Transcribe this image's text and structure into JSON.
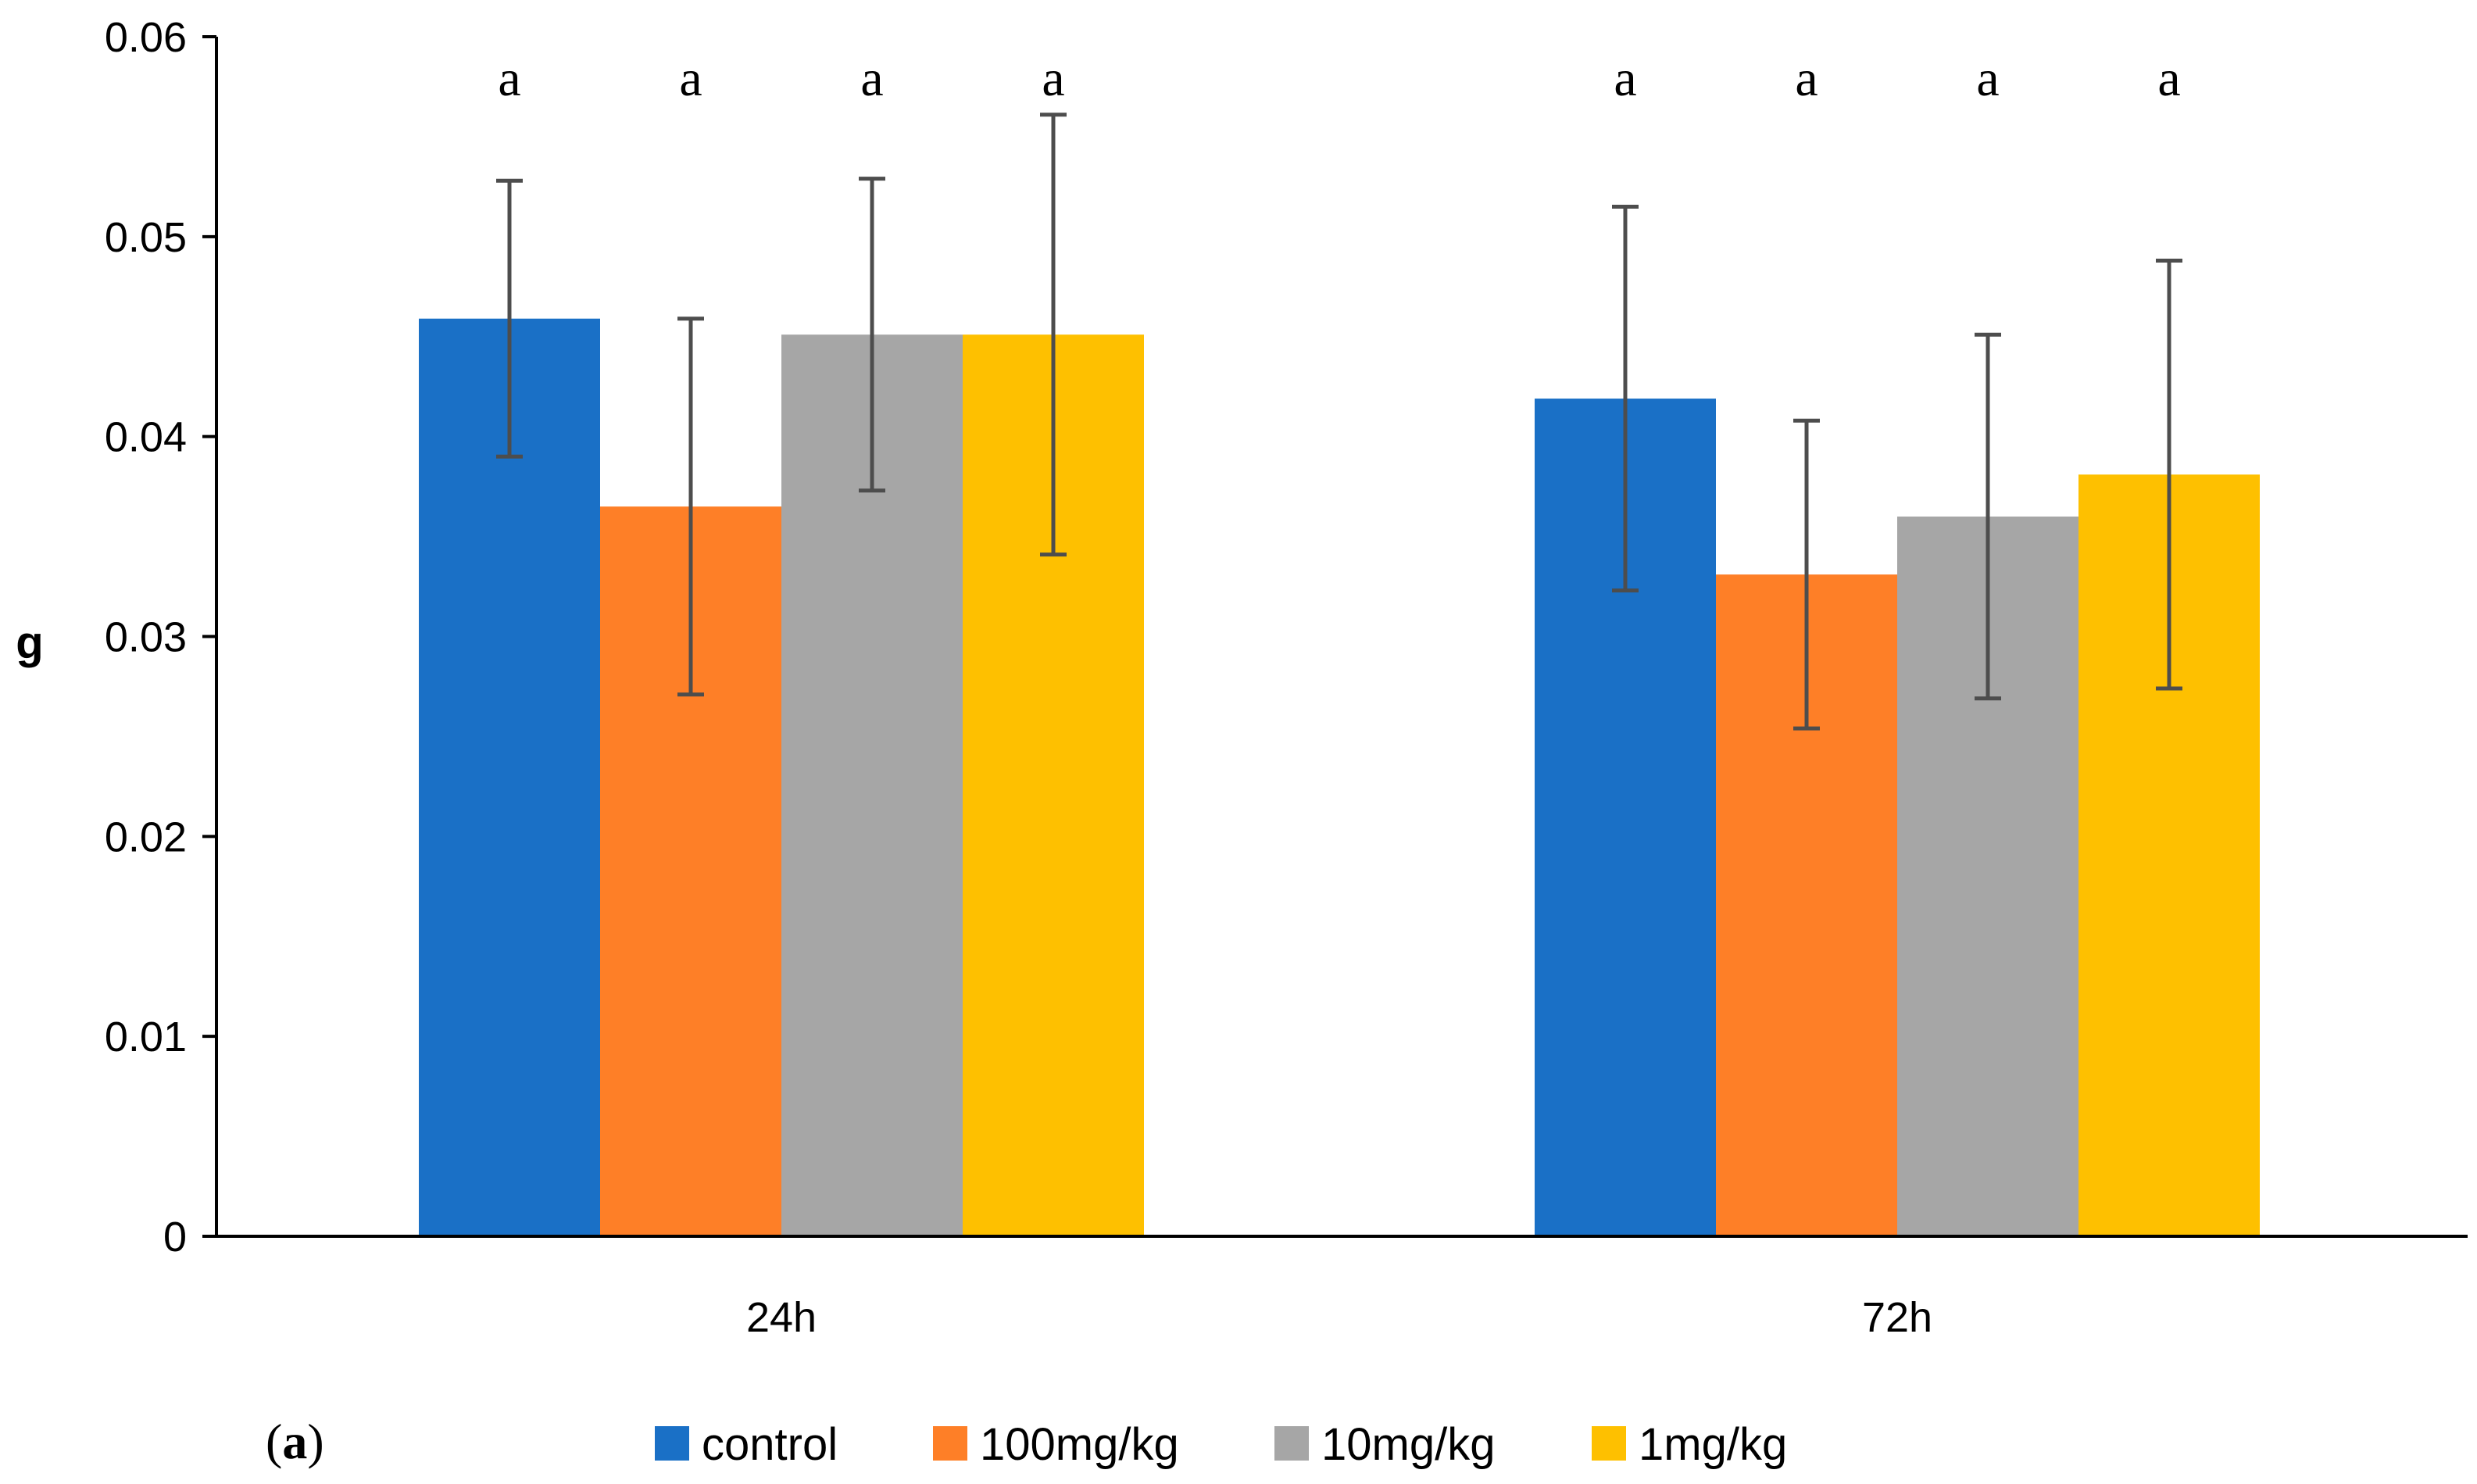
{
  "chart_data": {
    "type": "bar",
    "title": "",
    "xlabel": "",
    "ylabel": "g",
    "ylim": [
      0,
      0.06
    ],
    "yticks": [
      "0",
      "0.01",
      "0.02",
      "0.03",
      "0.04",
      "0.05",
      "0.06"
    ],
    "grid": false,
    "categories": [
      "24h",
      "72h"
    ],
    "series": [
      {
        "name": "control",
        "color": "#1a70c6",
        "values": [
          0.0459,
          0.0419
        ],
        "errors": [
          0.0069,
          0.0096
        ],
        "sig": [
          "a",
          "a"
        ]
      },
      {
        "name": "100mg/kg",
        "color": "#fe7f27",
        "values": [
          0.0365,
          0.0331
        ],
        "errors": [
          0.0094,
          0.0077
        ],
        "sig": [
          "a",
          "a"
        ]
      },
      {
        "name": "10mg/kg",
        "color": "#a6a6a6",
        "values": [
          0.0451,
          0.036
        ],
        "errors": [
          0.0078,
          0.0091
        ],
        "sig": [
          "a",
          "a"
        ]
      },
      {
        "name": "1mg/kg",
        "color": "#fec000",
        "values": [
          0.0451,
          0.0381
        ],
        "errors": [
          0.011,
          0.0107
        ],
        "sig": [
          "a",
          "a"
        ]
      }
    ],
    "legend_position": "bottom",
    "panel_label": {
      "open": "(",
      "letter": "a",
      "close": ")"
    },
    "axis_color": "#000000",
    "errorbar_color": "#4d4d4d"
  }
}
